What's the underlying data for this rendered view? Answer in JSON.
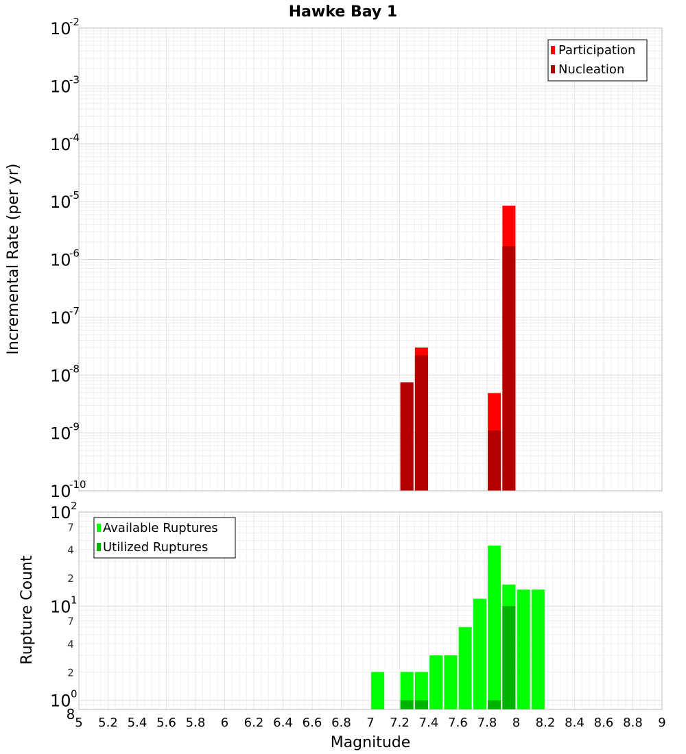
{
  "chart_data": [
    {
      "type": "bar",
      "title": "Hawke Bay 1",
      "ylabel": "Incremental Rate (per yr)",
      "xlabel": "",
      "yscale": "log",
      "xlim": [
        5,
        9
      ],
      "ylim": [
        1e-10,
        0.01
      ],
      "y_ticks": [
        {
          "base": "10",
          "exp": "-2",
          "value": 0.01
        },
        {
          "base": "10",
          "exp": "-3",
          "value": 0.001
        },
        {
          "base": "10",
          "exp": "-4",
          "value": 0.0001
        },
        {
          "base": "10",
          "exp": "-5",
          "value": 1e-05
        },
        {
          "base": "10",
          "exp": "-6",
          "value": 1e-06
        },
        {
          "base": "10",
          "exp": "-7",
          "value": 1e-07
        },
        {
          "base": "10",
          "exp": "-8",
          "value": 1e-08
        },
        {
          "base": "10",
          "exp": "-9",
          "value": 1e-09
        },
        {
          "base": "10",
          "exp": "-10",
          "value": 1e-10
        }
      ],
      "legend_position": "top-right",
      "series": [
        {
          "name": "Participation",
          "color": "#ff0000",
          "points": [
            {
              "x": 7.25,
              "y": 7.5e-09
            },
            {
              "x": 7.35,
              "y": 3e-08
            },
            {
              "x": 7.85,
              "y": 4.9e-09
            },
            {
              "x": 7.95,
              "y": 8.5e-06
            }
          ]
        },
        {
          "name": "Nucleation",
          "color": "#b20000",
          "points": [
            {
              "x": 7.25,
              "y": 7.5e-09
            },
            {
              "x": 7.35,
              "y": 2.2e-08
            },
            {
              "x": 7.85,
              "y": 1.1e-09
            },
            {
              "x": 7.95,
              "y": 1.7e-06
            }
          ]
        }
      ]
    },
    {
      "type": "bar",
      "title": "",
      "ylabel": "Rupture Count",
      "xlabel": "Magnitude",
      "yscale": "log",
      "xlim": [
        5,
        9
      ],
      "ylim": [
        0.8,
        100
      ],
      "x_ticks": [
        "5",
        "5.2",
        "5.4",
        "5.6",
        "5.8",
        "6",
        "6.2",
        "6.4",
        "6.6",
        "6.8",
        "7",
        "7.2",
        "7.4",
        "7.6",
        "7.8",
        "8",
        "8.2",
        "8.4",
        "8.6",
        "8.8",
        "9"
      ],
      "y_major_ticks": [
        {
          "base": "10",
          "exp": "2",
          "value": 100
        },
        {
          "base": "10",
          "exp": "1",
          "value": 10
        },
        {
          "base": "10",
          "exp": "0",
          "value": 1
        }
      ],
      "y_minor_ticks": [
        {
          "label": "7",
          "value": 70
        },
        {
          "label": "4",
          "value": 40
        },
        {
          "label": "2",
          "value": 20
        },
        {
          "label": "7",
          "value": 7
        },
        {
          "label": "4",
          "value": 4
        },
        {
          "label": "2",
          "value": 2
        },
        {
          "label": "8",
          "value": 0.8
        }
      ],
      "legend_position": "top-left",
      "series": [
        {
          "name": "Available Ruptures",
          "color": "#00ff00",
          "points": [
            {
              "x": 7.05,
              "y": 2
            },
            {
              "x": 7.25,
              "y": 2
            },
            {
              "x": 7.35,
              "y": 2
            },
            {
              "x": 7.45,
              "y": 3
            },
            {
              "x": 7.55,
              "y": 3
            },
            {
              "x": 7.65,
              "y": 6
            },
            {
              "x": 7.75,
              "y": 12
            },
            {
              "x": 7.85,
              "y": 44
            },
            {
              "x": 7.95,
              "y": 17
            },
            {
              "x": 8.05,
              "y": 15
            },
            {
              "x": 8.15,
              "y": 15
            }
          ]
        },
        {
          "name": "Utilized Ruptures",
          "color": "#00b200",
          "points": [
            {
              "x": 7.25,
              "y": 1
            },
            {
              "x": 7.35,
              "y": 1
            },
            {
              "x": 7.85,
              "y": 1
            },
            {
              "x": 7.95,
              "y": 10
            }
          ]
        }
      ]
    }
  ]
}
